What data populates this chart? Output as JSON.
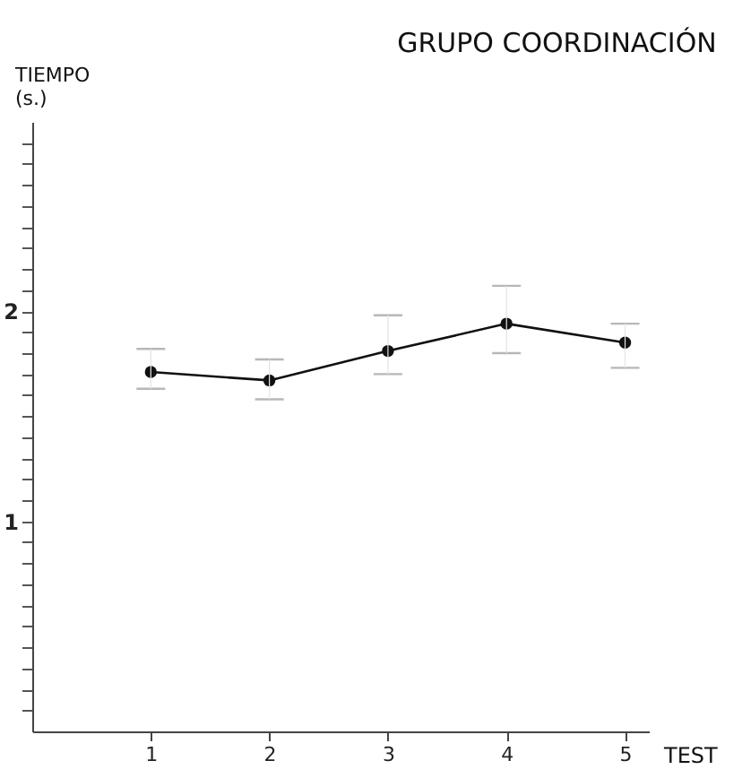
{
  "chart_data": {
    "type": "line",
    "title": "GRUPO COORDINACIÓN",
    "xlabel": "TEST",
    "ylabel": "TIEMPO (s.)",
    "x": [
      1,
      2,
      3,
      4,
      5
    ],
    "series": [
      {
        "color": "#111111",
        "values": [
          1.71,
          1.67,
          1.81,
          1.94,
          1.85
        ],
        "errors": [
          [
            1.63,
            1.82
          ],
          [
            1.58,
            1.77
          ],
          [
            1.7,
            1.98
          ],
          [
            1.8,
            2.12
          ],
          [
            1.73,
            1.94
          ]
        ]
      }
    ],
    "xlim": [
      0,
      5.2
    ],
    "xticks": [
      1,
      2,
      3,
      4,
      5
    ],
    "ylim": [
      0,
      2.9
    ],
    "yticks": [
      {
        "value": 0.1,
        "label": null
      },
      {
        "value": 0.2,
        "label": null
      },
      {
        "value": 0.3,
        "label": null
      },
      {
        "value": 0.4,
        "label": null
      },
      {
        "value": 0.5,
        "label": null
      },
      {
        "value": 0.6,
        "label": null
      },
      {
        "value": 0.7,
        "label": null
      },
      {
        "value": 0.8,
        "label": null
      },
      {
        "value": 0.9,
        "label": null
      },
      1,
      {
        "value": 1.1,
        "label": null
      },
      {
        "value": 1.2,
        "label": null
      },
      {
        "value": 1.3,
        "label": null
      },
      {
        "value": 1.4,
        "label": null
      },
      {
        "value": 1.5,
        "label": null
      },
      {
        "value": 1.6,
        "label": null
      },
      {
        "value": 1.7,
        "label": null
      },
      {
        "value": 1.8,
        "label": null
      },
      {
        "value": 1.9,
        "label": null
      },
      2,
      {
        "value": 2.1,
        "label": null
      },
      {
        "value": 2.2,
        "label": null
      },
      {
        "value": 2.3,
        "label": null
      },
      {
        "value": 2.4,
        "label": null
      },
      {
        "value": 2.5,
        "label": null
      },
      {
        "value": 2.6,
        "label": null
      },
      {
        "value": 2.7,
        "label": null
      },
      {
        "value": 2.8,
        "label": null
      }
    ],
    "grid": false,
    "marker": "circle",
    "line_style": "solid"
  }
}
